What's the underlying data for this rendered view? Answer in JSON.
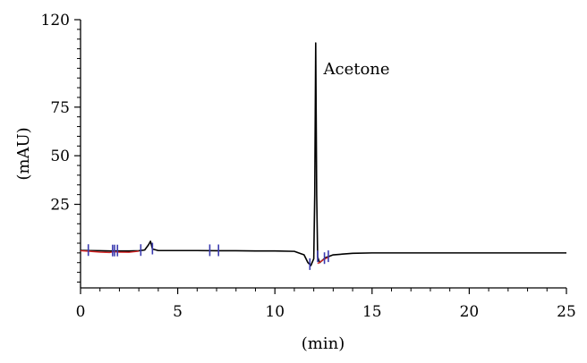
{
  "chart_data": {
    "type": "line",
    "xlabel": "(min)",
    "ylabel": "(mAU)",
    "xlim": [
      0,
      25
    ],
    "ylim": [
      -18,
      120
    ],
    "x_ticks": [
      0,
      5,
      10,
      15,
      20,
      25
    ],
    "y_ticks": [
      25,
      50,
      75,
      120
    ],
    "grid": false,
    "annotations": [
      {
        "text": "Acetone",
        "x": 12.5,
        "y": 92
      }
    ],
    "series": [
      {
        "color": "#000000",
        "x": [
          0.0,
          0.5,
          1.0,
          1.5,
          2.0,
          2.5,
          3.0,
          3.3,
          3.5,
          3.6,
          3.7,
          4.0,
          5.0,
          6.0,
          7.0,
          8.0,
          9.0,
          10.0,
          11.0,
          11.5,
          11.7,
          11.85,
          12.0,
          12.05,
          12.1,
          12.15,
          12.2,
          12.3,
          12.6,
          13.0,
          14.0,
          15.0,
          18.0,
          21.0,
          25.0
        ],
        "y": [
          1.3,
          1.2,
          1.1,
          1.0,
          1.0,
          1.0,
          1.1,
          1.5,
          4.2,
          6.0,
          2.0,
          1.2,
          1.2,
          1.2,
          1.1,
          1.1,
          1.0,
          1.0,
          0.8,
          -1.0,
          -5.0,
          -6.5,
          -3.0,
          30.0,
          108.0,
          30.0,
          -2.0,
          -5.0,
          -2.5,
          -1.0,
          -0.2,
          0.0,
          0.0,
          0.0,
          0.0
        ]
      },
      {
        "color": "#d62828",
        "x": [
          0.0,
          0.5,
          1.0,
          1.5,
          1.7,
          2.0,
          2.5,
          3.0
        ],
        "y": [
          1.1,
          0.8,
          0.4,
          0.2,
          0.6,
          0.4,
          0.3,
          0.9
        ]
      },
      {
        "color": "#d62828",
        "x": [
          12.2,
          12.5,
          12.8
        ],
        "y": [
          -5.5,
          -3.5,
          -2.0
        ]
      }
    ],
    "integration_marks": {
      "color": "#3a3ab0",
      "x": [
        0.4,
        1.65,
        1.75,
        1.9,
        3.1,
        3.7,
        6.65,
        7.1,
        11.8,
        12.2,
        12.55,
        12.75
      ]
    }
  }
}
